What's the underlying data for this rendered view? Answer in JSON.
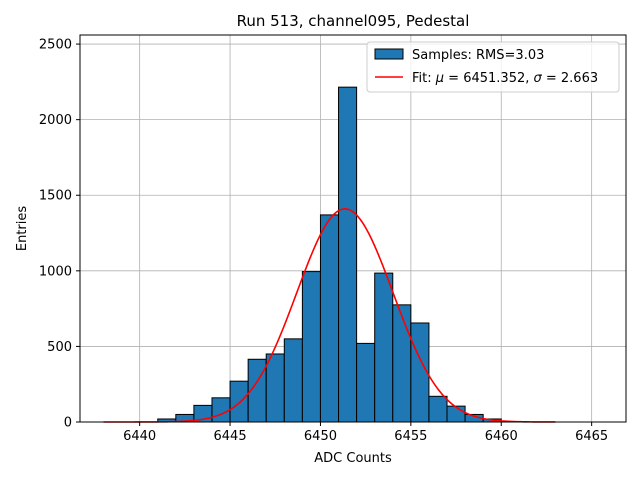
{
  "chart_data": {
    "type": "bar",
    "title": "Run 513, channel095, Pedestal",
    "xlabel": "ADC Counts",
    "ylabel": "Entries",
    "xlim": [
      6436.7,
      6466.9
    ],
    "ylim": [
      0,
      2560
    ],
    "xticks": [
      6440,
      6445,
      6450,
      6455,
      6460,
      6465
    ],
    "yticks": [
      0,
      500,
      1000,
      1500,
      2000,
      2500
    ],
    "grid": true,
    "legend_position": "top-right",
    "histogram": {
      "name": "Samples: RMS=3.03",
      "color": "#1f77b4",
      "bin_edges": [
        6441,
        6442,
        6443,
        6444,
        6445,
        6446,
        6447,
        6448,
        6449,
        6450,
        6451,
        6452,
        6453,
        6454,
        6455,
        6456,
        6457,
        6458,
        6459,
        6460
      ],
      "values": [
        20,
        50,
        110,
        160,
        270,
        415,
        450,
        550,
        995,
        1370,
        2215,
        520,
        985,
        775,
        655,
        170,
        105,
        50,
        20
      ]
    },
    "fit": {
      "name_prefix": "Fit: ",
      "mu_symbol": "μ",
      "mu_value": " = 6451.352, ",
      "sigma_symbol": "σ",
      "sigma_value": " = 2.663",
      "color": "#ff0000",
      "mu": 6451.352,
      "sigma": 2.663,
      "amplitude": 1410,
      "x_range": [
        6438,
        6463
      ]
    }
  }
}
